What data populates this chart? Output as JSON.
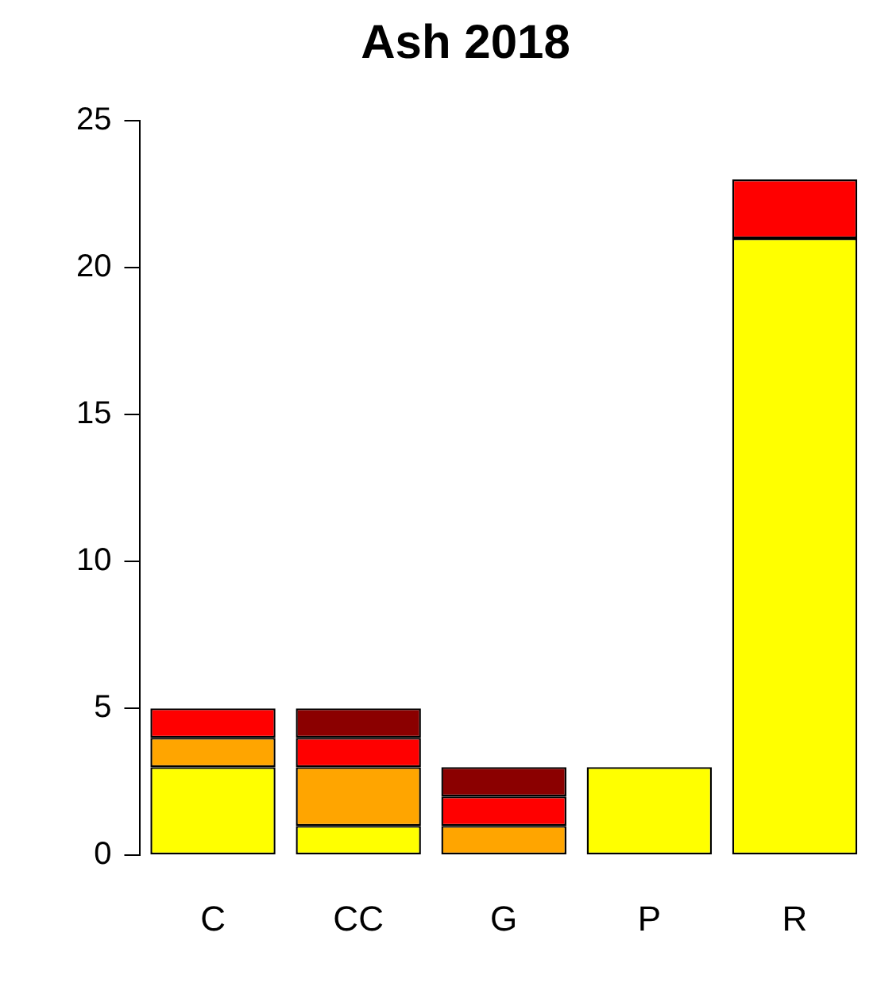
{
  "chart_data": {
    "type": "bar",
    "title": "Ash 2018",
    "stacked": true,
    "categories": [
      "C",
      "CC",
      "G",
      "P",
      "R"
    ],
    "series": [
      {
        "color": "#ffff00",
        "values": [
          3,
          1,
          0,
          3,
          21
        ]
      },
      {
        "color": "#ffa500",
        "values": [
          1,
          2,
          1,
          0,
          0
        ]
      },
      {
        "color": "#ff0000",
        "values": [
          1,
          1,
          1,
          0,
          2
        ]
      },
      {
        "color": "#8b0000",
        "values": [
          0,
          1,
          1,
          0,
          0
        ]
      }
    ],
    "ylim": [
      0,
      25
    ],
    "yticks": [
      0,
      5,
      10,
      15,
      20,
      25
    ],
    "grid": false,
    "legend": false
  }
}
